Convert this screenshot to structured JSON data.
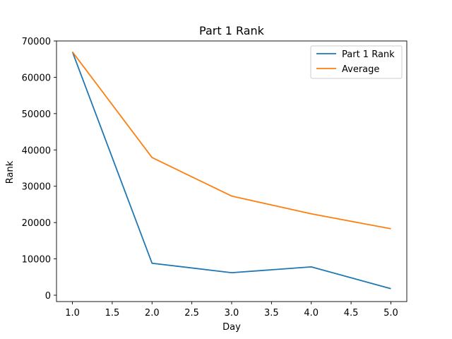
{
  "chart_data": {
    "type": "line",
    "title": "Part 1 Rank",
    "xlabel": "Day",
    "ylabel": "Rank",
    "xlim": [
      0.8,
      5.2
    ],
    "ylim": [
      -1750,
      70000
    ],
    "xticks": [
      1.0,
      1.5,
      2.0,
      2.5,
      3.0,
      3.5,
      4.0,
      4.5,
      5.0
    ],
    "xtick_labels": [
      "1.0",
      "1.5",
      "2.0",
      "2.5",
      "3.0",
      "3.5",
      "4.0",
      "4.5",
      "5.0"
    ],
    "yticks": [
      0,
      10000,
      20000,
      30000,
      40000,
      50000,
      60000,
      70000
    ],
    "ytick_labels": [
      "0",
      "10000",
      "20000",
      "30000",
      "40000",
      "50000",
      "60000",
      "70000"
    ],
    "grid": false,
    "legend_position": "top-right",
    "x": [
      1,
      2,
      3,
      4,
      5
    ],
    "series": [
      {
        "name": "Part 1 Rank",
        "color": "#1f77b4",
        "values": [
          67000,
          8800,
          6200,
          7800,
          1800
        ]
      },
      {
        "name": "Average",
        "color": "#ff7f0e",
        "values": [
          67000,
          37900,
          27300,
          22400,
          18300
        ]
      }
    ]
  }
}
